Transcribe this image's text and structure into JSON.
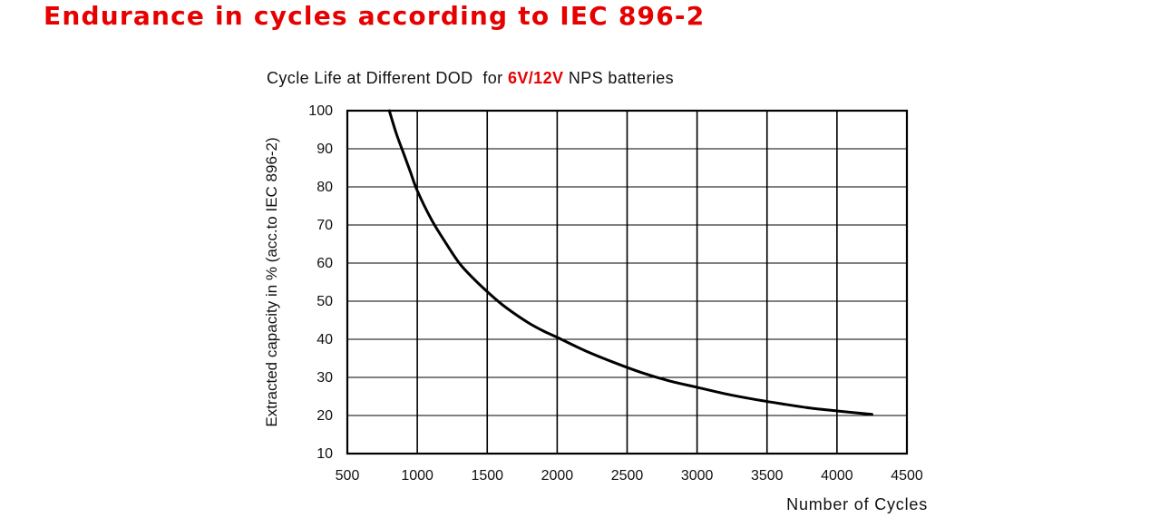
{
  "heading": "Endurance in cycles according to IEC 896-2",
  "chart_data": {
    "type": "line",
    "title": {
      "prefix": "Cycle Life at Different DOD  for ",
      "highlight": "6V/12V",
      "suffix": " NPS batteries"
    },
    "xlabel": "Number of Cycles",
    "ylabel": "Extracted capacity in % (acc.to IEC 896-2)",
    "xlim": [
      500,
      4500
    ],
    "ylim": [
      10,
      100
    ],
    "xticks": [
      500,
      1000,
      1500,
      2000,
      2500,
      3000,
      3500,
      4000,
      4500
    ],
    "yticks": [
      10,
      20,
      30,
      40,
      50,
      60,
      70,
      80,
      90,
      100
    ],
    "grid": true,
    "series": [
      {
        "color": "#000000",
        "x": [
          800,
          850,
          900,
          950,
          1000,
          1100,
          1200,
          1300,
          1400,
          1500,
          1600,
          1700,
          1800,
          1900,
          2000,
          2200,
          2400,
          2600,
          2800,
          3000,
          3200,
          3400,
          3600,
          3800,
          4000,
          4250
        ],
        "y": [
          100,
          94,
          89,
          84,
          79,
          71.5,
          65.5,
          60,
          56,
          52.5,
          49.3,
          46.6,
          44.2,
          42.2,
          40.5,
          37,
          34,
          31.3,
          29.1,
          27.4,
          25.7,
          24.3,
          23.1,
          22,
          21.2,
          20.3
        ]
      }
    ]
  }
}
